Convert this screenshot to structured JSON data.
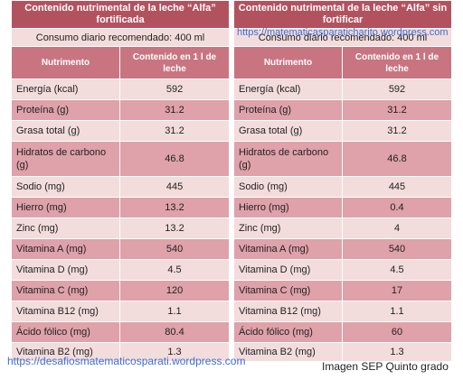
{
  "left_table": {
    "title": "Contenido nutrimental de la leche “Alfa” fortificada",
    "consumo": "Consumo diario recomendado: 400 ml",
    "col_nutrimento": "Nutrimento",
    "col_contenido": "Contenido en 1 l de leche",
    "rows": [
      {
        "name": "Energía (kcal)",
        "value": "592"
      },
      {
        "name": "Proteína (g)",
        "value": "31.2"
      },
      {
        "name": "Grasa total (g)",
        "value": "31.2"
      },
      {
        "name": "Hidratos de carbono (g)",
        "value": "46.8"
      },
      {
        "name": "Sodio (mg)",
        "value": "445"
      },
      {
        "name": "Hierro (mg)",
        "value": "13.2"
      },
      {
        "name": "Zinc (mg)",
        "value": "13.2"
      },
      {
        "name": "Vitamina A (mg)",
        "value": "540"
      },
      {
        "name": "Vitamina D (mg)",
        "value": "4.5"
      },
      {
        "name": "Vitamina C (mg)",
        "value": "120"
      },
      {
        "name": "Vitamina B12 (mg)",
        "value": "1.1"
      },
      {
        "name": "Ácido fólico (mg)",
        "value": "80.4"
      },
      {
        "name": "Vitamina B2 (mg)",
        "value": "1.3"
      }
    ]
  },
  "right_table": {
    "title": "Contenido nutrimental de la leche “Alfa” sin fortificar",
    "consumo": "Consumo diario recomendado: 400 ml",
    "col_nutrimento": "Nutrimento",
    "col_contenido": "Contenido en 1 l de leche",
    "rows": [
      {
        "name": "Energía (kcal)",
        "value": "592"
      },
      {
        "name": "Proteína (g)",
        "value": "31.2"
      },
      {
        "name": "Grasa total (g)",
        "value": "31.2"
      },
      {
        "name": "Hidratos de carbono (g)",
        "value": "46.8"
      },
      {
        "name": "Sodio (mg)",
        "value": "445"
      },
      {
        "name": "Hierro (mg)",
        "value": "0.4"
      },
      {
        "name": "Zinc (mg)",
        "value": "4"
      },
      {
        "name": "Vitamina A (mg)",
        "value": "540"
      },
      {
        "name": "Vitamina D (mg)",
        "value": "4.5"
      },
      {
        "name": "Vitamina C (mg)",
        "value": "17"
      },
      {
        "name": "Vitamina B12 (mg)",
        "value": "1.1"
      },
      {
        "name": "Ácido fólico (mg)",
        "value": "60"
      },
      {
        "name": "Vitamina B2 (mg)",
        "value": "1.3"
      }
    ]
  },
  "watermark_top": "https://matematicasparaticharito.wordpress.com",
  "watermark_bottom": "https://desafiosmatematicosparati.wordpress.com",
  "credit": "Imagen SEP Quinto grado",
  "colors": {
    "title_bg": "#b3525f",
    "header_bg": "#c87581",
    "row_light": "#f3dcdc",
    "row_dark": "#dfa1aa",
    "link_blue": "#3b6fd6"
  }
}
